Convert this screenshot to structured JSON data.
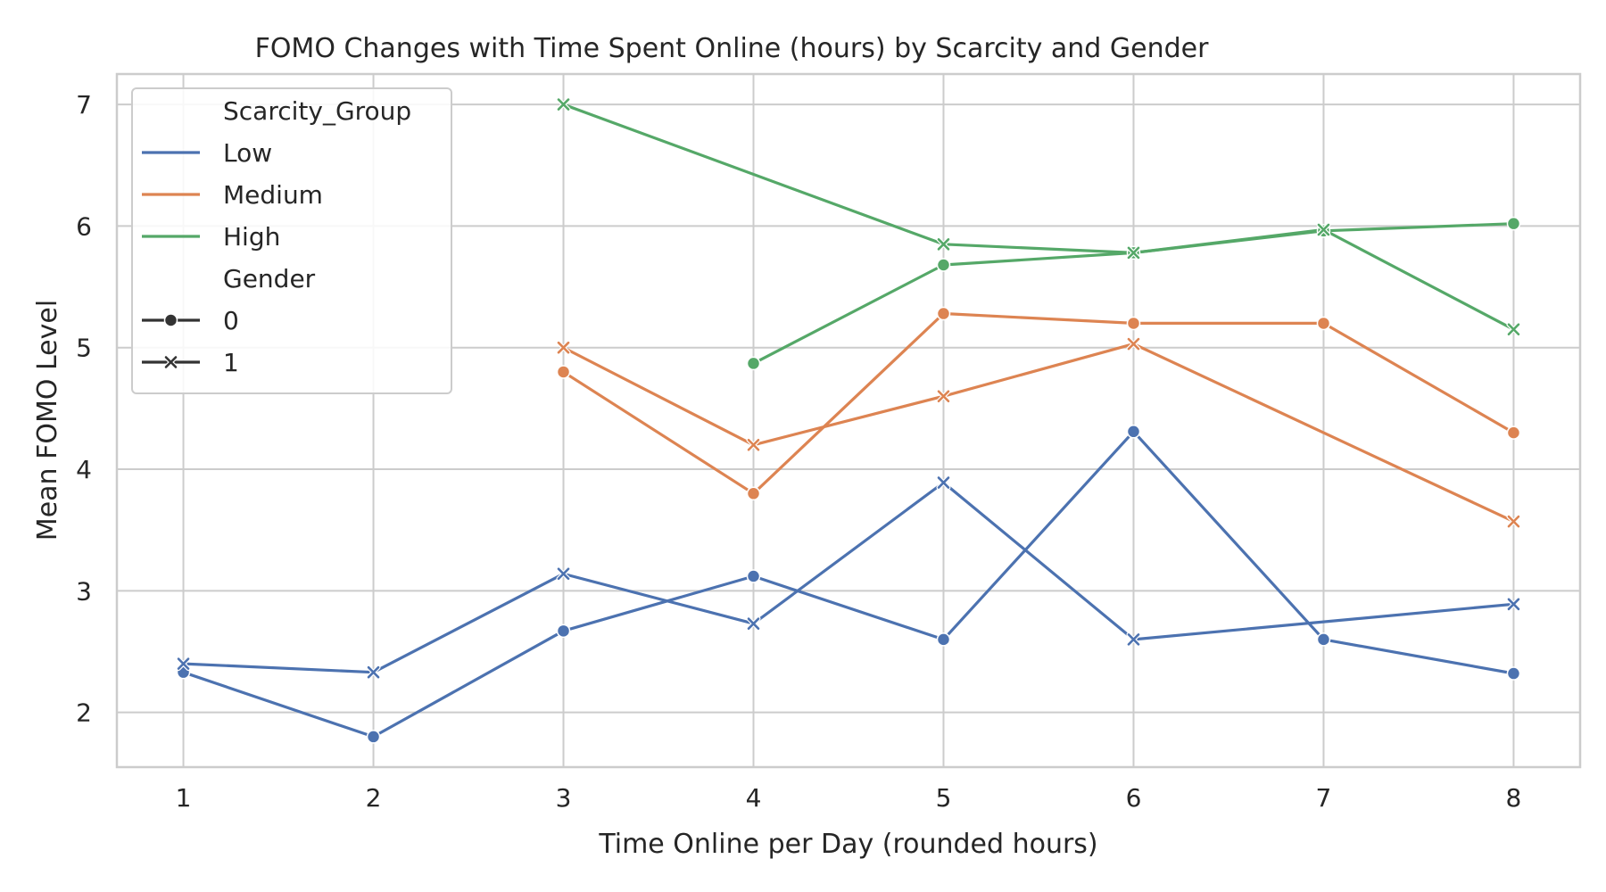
{
  "chart_data": {
    "type": "line",
    "title": "FOMO Changes with Time Spent Online (hours) by Scarcity and Gender",
    "xlabel": "Time Online per Day (rounded hours)",
    "ylabel": "Mean FOMO Level",
    "x_ticks": [
      1,
      2,
      3,
      4,
      5,
      6,
      7,
      8
    ],
    "y_ticks": [
      2,
      3,
      4,
      5,
      6,
      7
    ],
    "xlim": [
      0.65,
      8.35
    ],
    "ylim": [
      1.55,
      7.25
    ],
    "grid": true,
    "legend": {
      "placement": "top-left",
      "hue_title": "Scarcity_Group",
      "hue_entries": [
        {
          "label": "Low",
          "color": "#4c72b0"
        },
        {
          "label": "Medium",
          "color": "#dd8452"
        },
        {
          "label": "High",
          "color": "#55a868"
        }
      ],
      "style_title": "Gender",
      "style_entries": [
        {
          "label": "0",
          "marker": "circle"
        },
        {
          "label": "1",
          "marker": "x"
        }
      ]
    },
    "series": [
      {
        "scarcity": "Low",
        "gender": "0",
        "color": "#4c72b0",
        "marker": "circle",
        "points": [
          [
            1,
            2.33
          ],
          [
            2,
            1.8
          ],
          [
            3,
            2.67
          ],
          [
            4,
            3.12
          ],
          [
            5,
            2.6
          ],
          [
            6,
            4.31
          ],
          [
            7,
            2.6
          ],
          [
            8,
            2.32
          ]
        ]
      },
      {
        "scarcity": "Low",
        "gender": "1",
        "color": "#4c72b0",
        "marker": "x",
        "points": [
          [
            1,
            2.4
          ],
          [
            2,
            2.33
          ],
          [
            3,
            3.14
          ],
          [
            4,
            2.73
          ],
          [
            5,
            3.89
          ],
          [
            6,
            2.6
          ],
          [
            8,
            2.89
          ]
        ]
      },
      {
        "scarcity": "Medium",
        "gender": "0",
        "color": "#dd8452",
        "marker": "circle",
        "points": [
          [
            3,
            4.8
          ],
          [
            4,
            3.8
          ],
          [
            5,
            5.28
          ],
          [
            6,
            5.2
          ],
          [
            7,
            5.2
          ],
          [
            8,
            4.3
          ]
        ]
      },
      {
        "scarcity": "Medium",
        "gender": "1",
        "color": "#dd8452",
        "marker": "x",
        "points": [
          [
            3,
            5.0
          ],
          [
            4,
            4.2
          ],
          [
            5,
            4.6
          ],
          [
            6,
            5.03
          ],
          [
            8,
            3.57
          ]
        ]
      },
      {
        "scarcity": "High",
        "gender": "0",
        "color": "#55a868",
        "marker": "circle",
        "points": [
          [
            4,
            4.87
          ],
          [
            5,
            5.68
          ],
          [
            6,
            5.78
          ],
          [
            7,
            5.96
          ],
          [
            8,
            6.02
          ]
        ]
      },
      {
        "scarcity": "High",
        "gender": "1",
        "color": "#55a868",
        "marker": "x",
        "points": [
          [
            3,
            7.0
          ],
          [
            5,
            5.85
          ],
          [
            6,
            5.78
          ],
          [
            7,
            5.97
          ],
          [
            8,
            5.15
          ]
        ]
      }
    ]
  }
}
